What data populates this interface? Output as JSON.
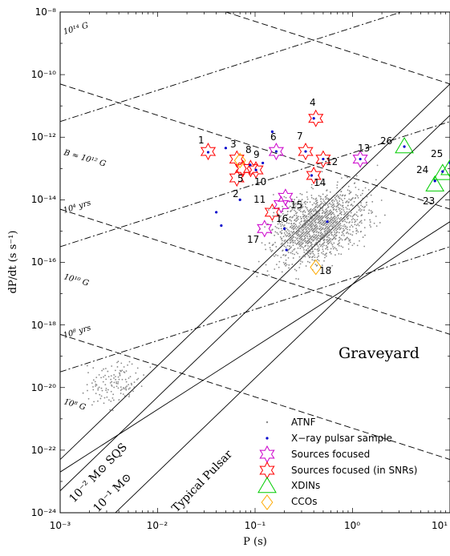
{
  "chart_data": {
    "type": "scatter",
    "title": "",
    "xlabel": "P (s)",
    "ylabel": "dP/dt (s s⁻¹)",
    "xscale": "log",
    "yscale": "log",
    "xlim": [
      0.001,
      10
    ],
    "ylim": [
      1e-24,
      1e-08
    ],
    "x_tick_labels": [
      "10⁻³",
      "10⁻²",
      "10⁻¹",
      "10⁰",
      "10¹"
    ],
    "y_tick_labels": [
      "10⁻²⁴",
      "10⁻²²",
      "10⁻²⁰",
      "10⁻¹⁸",
      "10⁻¹⁶",
      "10⁻¹⁴",
      "10⁻¹²",
      "10⁻¹⁰",
      "10⁻⁸"
    ],
    "legend_position": "bottom-right",
    "series": [
      {
        "name": "ATNF",
        "marker": "small gray dot",
        "color": "#888888",
        "note": "cloud of ~2000 radio pulsars; normal pulsars clustered P 0.1–1 s, dP/dt 1e-16–1e-14; millisecond pulsars P 2–10 ms, dP/dt 1e-21–1e-19"
      },
      {
        "name": "X−ray pulsar sample",
        "marker": "small blue dot",
        "color": "#0000cc",
        "points": [
          [
            0.033,
            3.3e-13
          ],
          [
            0.05,
            4.5e-13
          ],
          [
            0.089,
            1.3e-13
          ],
          [
            0.102,
            9e-14
          ],
          [
            0.15,
            1.5e-12
          ],
          [
            0.165,
            3.5e-13
          ],
          [
            0.4,
            4e-12
          ],
          [
            0.33,
            3.5e-13
          ],
          [
            0.5,
            2e-13
          ],
          [
            1.2,
            2e-13
          ],
          [
            0.2,
            1.2e-15
          ],
          [
            0.21,
            2.5e-16
          ],
          [
            0.55,
            2e-15
          ],
          [
            0.04,
            4e-15
          ],
          [
            0.045,
            1.5e-15
          ],
          [
            0.07,
            1e-14
          ],
          [
            0.12,
            1.5e-13
          ],
          [
            3.4,
            5e-13
          ],
          [
            7,
            4e-14
          ],
          [
            8.4,
            8e-14
          ],
          [
            10,
            1.5e-13
          ],
          [
            0.38,
            6e-14
          ]
        ]
      },
      {
        "name": "Sources focused",
        "marker": "magenta six-point star",
        "color": "#cc00cc",
        "points": [
          [
            0.165,
            3.5e-13
          ],
          [
            1.2,
            2e-13
          ],
          [
            0.205,
            1.2e-14
          ],
          [
            0.185,
            7e-15
          ],
          [
            0.125,
            1.2e-15
          ]
        ]
      },
      {
        "name": "Sources focused (in SNRs)",
        "marker": "red six-point star",
        "color": "#ff0000",
        "points": [
          [
            0.033,
            3.5e-13
          ],
          [
            0.065,
            2e-13
          ],
          [
            0.065,
            5e-14
          ],
          [
            0.09,
            1e-13
          ],
          [
            0.102,
            9e-14
          ],
          [
            0.42,
            4e-12
          ],
          [
            0.33,
            3.5e-13
          ],
          [
            0.5,
            2e-13
          ],
          [
            0.4,
            6e-14
          ],
          [
            0.15,
            4e-15
          ],
          [
            0.075,
            1e-13
          ]
        ]
      },
      {
        "name": "XDINs",
        "marker": "green triangle",
        "color": "#00cc00",
        "points": [
          [
            3.4,
            5e-13
          ],
          [
            7,
            3e-14
          ],
          [
            8.4,
            7e-14
          ],
          [
            10,
            1e-13
          ]
        ]
      },
      {
        "name": "CCOs",
        "marker": "orange diamond",
        "color": "#ffaa00",
        "points": [
          [
            0.07,
            1.8e-13
          ],
          [
            0.42,
            7e-17
          ]
        ]
      }
    ],
    "source_labels": [
      "1",
      "2",
      "3",
      "4",
      "5",
      "6",
      "7",
      "8",
      "9",
      "10",
      "11",
      "12",
      "13",
      "14",
      "15",
      "16",
      "17",
      "18",
      "23",
      "24",
      "25",
      "26"
    ],
    "line_annotations": {
      "b14": "10¹⁴ G",
      "b12": "B ≈ 10¹² G",
      "b10": "10¹⁰ G",
      "b8": "10⁸ G",
      "t4": "10⁴ yrs",
      "t8": "10⁸ yrs",
      "graveyard": "Graveyard",
      "typical": "Typical Pulsar",
      "sqs1": "10⁻² M⊙ SQS",
      "sqs2": "10⁻¹ M⊙"
    }
  }
}
